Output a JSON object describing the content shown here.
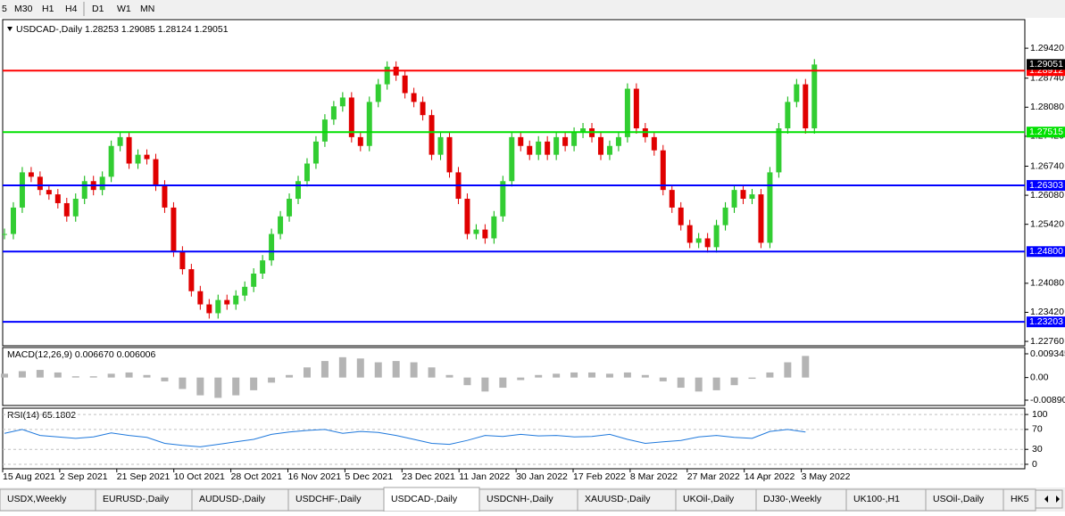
{
  "toolbar": {
    "timeframes": [
      "5",
      "M30",
      "H1",
      "H4",
      "D1",
      "W1",
      "MN"
    ]
  },
  "chart": {
    "type": "candlestick",
    "title": "USDCAD-,Daily",
    "ohlc_text": "1.28253 1.29085 1.28124 1.29051",
    "ylim": [
      1.2266,
      1.3007
    ],
    "yticks": [
      {
        "value": 1.2942,
        "label": "1.29420"
      },
      {
        "value": 1.2874,
        "label": "1.28740"
      },
      {
        "value": 1.2808,
        "label": "1.28080"
      },
      {
        "value": 1.2742,
        "label": "1.27420"
      },
      {
        "value": 1.2674,
        "label": "1.26740"
      },
      {
        "value": 1.2608,
        "label": "1.26080"
      },
      {
        "value": 1.2542,
        "label": "1.25420"
      },
      {
        "value": 1.2408,
        "label": "1.24080"
      },
      {
        "value": 1.2342,
        "label": "1.23420"
      },
      {
        "value": 1.2276,
        "label": "1.22760"
      }
    ],
    "levels": [
      {
        "price": 1.28912,
        "color": "#ff0000"
      },
      {
        "price": 1.27515,
        "color": "#00e000"
      },
      {
        "price": 1.26303,
        "color": "#0000ff"
      },
      {
        "price": {
          "value": 1.248,
          "label": "1.24800"
        },
        "color": "#0000ff"
      },
      {
        "price": 1.23203,
        "color": "#0000ff"
      }
    ],
    "current_price": 1.29051,
    "closes": [
      1.252,
      1.258,
      1.266,
      1.265,
      1.262,
      1.261,
      1.259,
      1.256,
      1.26,
      1.264,
      1.262,
      1.265,
      1.272,
      1.274,
      1.268,
      1.27,
      1.269,
      1.263,
      1.258,
      1.248,
      1.244,
      1.239,
      1.236,
      1.234,
      1.237,
      1.236,
      1.238,
      1.24,
      1.243,
      1.246,
      1.252,
      1.256,
      1.26,
      1.264,
      1.268,
      1.273,
      1.278,
      1.281,
      1.283,
      1.274,
      1.272,
      1.282,
      1.286,
      1.29,
      1.288,
      1.284,
      1.282,
      1.279,
      1.27,
      1.274,
      1.266,
      1.26,
      1.252,
      1.253,
      1.251,
      1.256,
      1.264,
      1.274,
      1.272,
      1.27,
      1.273,
      1.27,
      1.274,
      1.272,
      1.275,
      1.276,
      1.274,
      1.27,
      1.272,
      1.274,
      1.285,
      1.276,
      1.274,
      1.271,
      1.262,
      1.258,
      1.254,
      1.25,
      1.251,
      1.249,
      1.254,
      1.258,
      1.262,
      1.26,
      1.261,
      1.25,
      1.266,
      1.276,
      1.282,
      1.286,
      1.276,
      1.2905
    ],
    "date_labels": [
      "15 Aug 2021",
      "2 Sep 2021",
      "21 Sep 2021",
      "10 Oct 2021",
      "28 Oct 2021",
      "16 Nov 2021",
      "5 Dec 2021",
      "23 Dec 2021",
      "11 Jan 2022",
      "30 Jan 2022",
      "17 Feb 2022",
      "8 Mar 2022",
      "27 Mar 2022",
      "14 Apr 2022",
      "3 May 2022"
    ]
  },
  "macd": {
    "label": "MACD(12,26,9) 0.006670 0.006006",
    "ylim": [
      -0.011,
      0.0118
    ],
    "yticks": [
      0.009345,
      {
        "value": 0,
        "label": "0.00"
      },
      -0.008902
    ],
    "values": [
      0.0015,
      0.0025,
      0.003,
      0.002,
      0.0005,
      0.0005,
      0.0015,
      0.002,
      0.001,
      -0.0015,
      -0.0045,
      -0.007,
      -0.008,
      -0.007,
      -0.005,
      -0.002,
      0.001,
      0.004,
      0.0065,
      0.008,
      0.0075,
      0.006,
      0.0065,
      0.006,
      0.004,
      0.001,
      -0.003,
      -0.0055,
      -0.004,
      -0.001,
      0.001,
      0.0015,
      0.002,
      0.002,
      0.0015,
      0.002,
      0.001,
      -0.0015,
      -0.004,
      -0.0055,
      -0.005,
      -0.003,
      -0.0005,
      0.002,
      0.006,
      0.0085
    ]
  },
  "rsi": {
    "label": "RSI(14) 65.1802",
    "ylim": [
      -9,
      112.7
    ],
    "yticks": [
      100,
      70,
      30,
      0
    ],
    "values": [
      62,
      70,
      58,
      55,
      52,
      55,
      63,
      58,
      54,
      42,
      38,
      35,
      40,
      45,
      50,
      60,
      65,
      68,
      70,
      62,
      66,
      64,
      58,
      50,
      42,
      40,
      48,
      58,
      56,
      60,
      57,
      58,
      55,
      56,
      60,
      50,
      42,
      45,
      48,
      55,
      58,
      54,
      52,
      66,
      70,
      65
    ]
  },
  "tabs": [
    "USDX,Weekly",
    "EURUSD-,Daily",
    "AUDUSD-,Daily",
    "USDCHF-,Daily",
    "USDCAD-,Daily",
    "USDCNH-,Daily",
    "XAUUSD-,Daily",
    "UKOil-,Daily",
    "DJ30-,Weekly",
    "UK100-,H1",
    "USOil-,Daily",
    "HK5"
  ],
  "active_tab": 4
}
